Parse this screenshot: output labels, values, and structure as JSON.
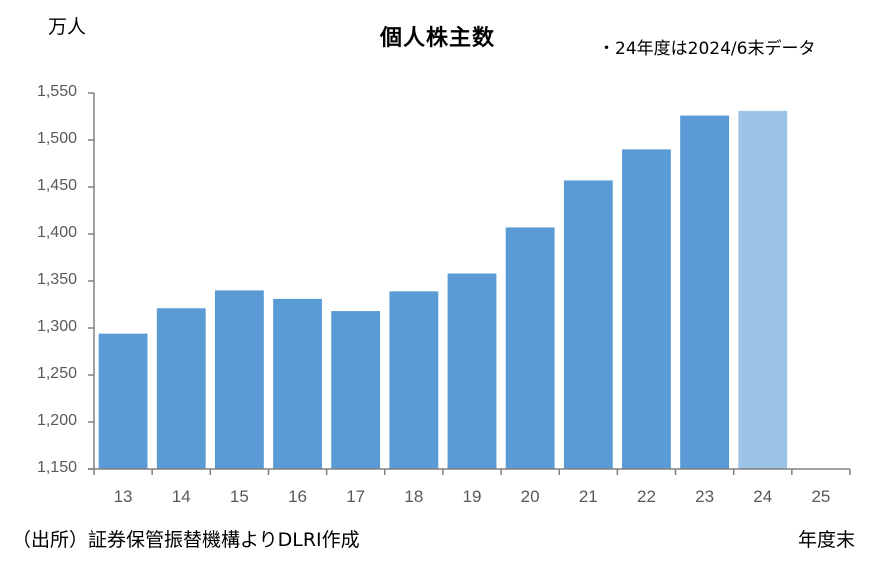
{
  "chart": {
    "unit_label": "万人",
    "title": "個人株主数",
    "note": "・24年度は2024/6末データ",
    "source": "（出所）証券保管振替機構よりDLRI作成",
    "x_unit": "年度末",
    "colors": {
      "bar": "#5B9BD5",
      "bar_highlight": "#9DC3E6",
      "axis": "#808080",
      "tick_text": "#595959"
    }
  },
  "chart_data": {
    "type": "bar",
    "title": "個人株主数",
    "xlabel": "年度末",
    "ylabel": "万人",
    "categories": [
      "13",
      "14",
      "15",
      "16",
      "17",
      "18",
      "19",
      "20",
      "21",
      "22",
      "23",
      "24",
      "25"
    ],
    "values": [
      1294,
      1321,
      1340,
      1331,
      1318,
      1339,
      1358,
      1407,
      1457,
      1490,
      1526,
      1531,
      null
    ],
    "highlight_index": 11,
    "ylim": [
      1150,
      1550
    ],
    "yticks": [
      "1,150",
      "1,200",
      "1,250",
      "1,300",
      "1,350",
      "1,400",
      "1,450",
      "1,500",
      "1,550"
    ],
    "grid": false,
    "legend": "none",
    "annotations": [
      "・24年度は2024/6末データ"
    ]
  }
}
